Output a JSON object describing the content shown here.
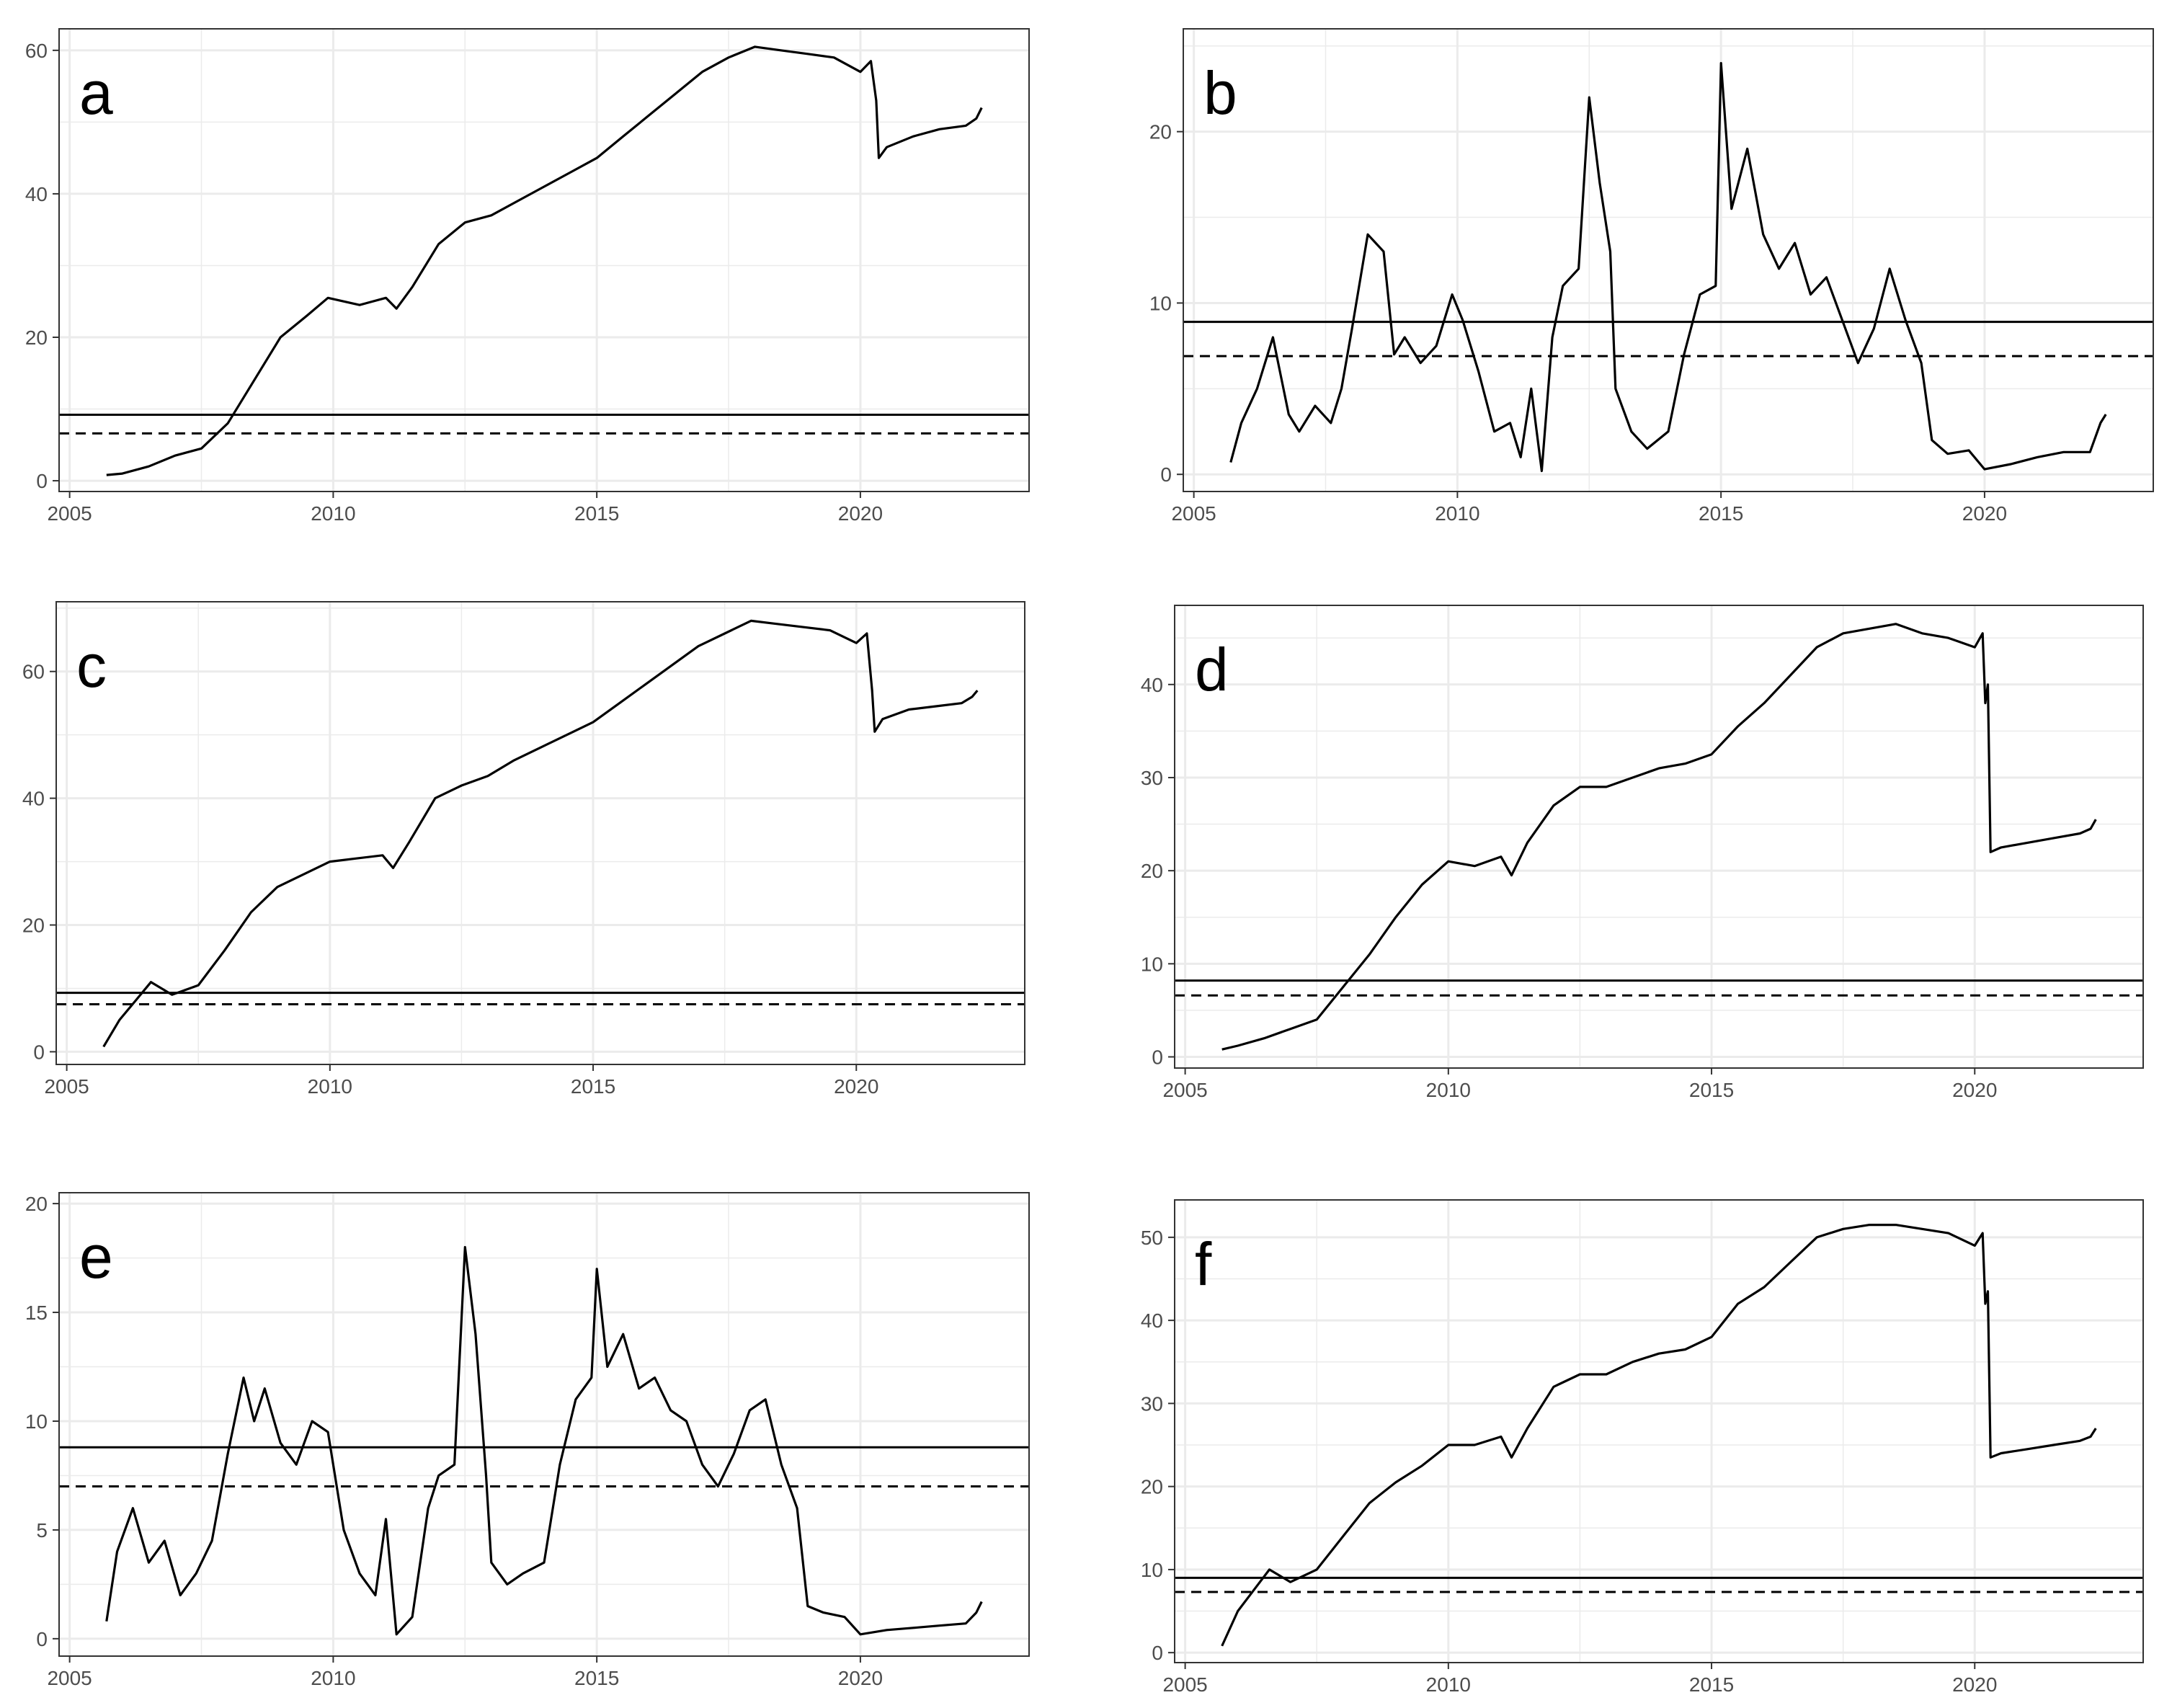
{
  "figure": {
    "line_color": "#000000",
    "grid_color": "#ebebeb",
    "frame_color": "#333333",
    "tick_label_color": "#4d4d4d"
  },
  "chart_data": [
    {
      "id": "a",
      "type": "line",
      "panel_label": "a",
      "title": "",
      "xlabel": "",
      "ylabel": "",
      "xlim": [
        2004.8,
        2023.2
      ],
      "ylim": [
        -1.5,
        63
      ],
      "x_ticks": [
        2005,
        2010,
        2015,
        2020
      ],
      "y_ticks": [
        0,
        20,
        40,
        60
      ],
      "grid": true,
      "hlines": [
        {
          "y": 9.2,
          "style": "solid"
        },
        {
          "y": 6.6,
          "style": "dashed"
        }
      ],
      "series": [
        {
          "x": [
            2005.7,
            2006.0,
            2006.5,
            2007.0,
            2007.5,
            2008.0,
            2008.5,
            2009.0,
            2009.5,
            2009.9,
            2010.5,
            2011.0,
            2011.2,
            2011.5,
            2012.0,
            2012.5,
            2013.0,
            2013.5,
            2014.0,
            2014.5,
            2015.0,
            2015.5,
            2016.0,
            2016.5,
            2017.0,
            2017.5,
            2018.0,
            2018.5,
            2019.0,
            2019.5,
            2020.0,
            2020.2,
            2020.3,
            2020.35,
            2020.5,
            2021.0,
            2021.5,
            2022.0,
            2022.2,
            2022.3
          ],
          "y": [
            0.8,
            1.0,
            2.0,
            3.5,
            4.5,
            8.0,
            14.0,
            20.0,
            23.0,
            25.5,
            24.5,
            25.5,
            24.0,
            27.0,
            33.0,
            36.0,
            37.0,
            39.0,
            41.0,
            43.0,
            45.0,
            48.0,
            51.0,
            54.0,
            57.0,
            59.0,
            60.5,
            60.0,
            59.5,
            59.0,
            57.0,
            58.5,
            53.0,
            45.0,
            46.5,
            48.0,
            49.0,
            49.5,
            50.5,
            52.0
          ]
        }
      ]
    },
    {
      "id": "b",
      "type": "line",
      "panel_label": "b",
      "title": "",
      "xlabel": "",
      "ylabel": "",
      "xlim": [
        2004.8,
        2023.2
      ],
      "ylim": [
        -1,
        26
      ],
      "x_ticks": [
        2005,
        2010,
        2015,
        2020
      ],
      "y_ticks": [
        0,
        10,
        20
      ],
      "grid": true,
      "hlines": [
        {
          "y": 8.9,
          "style": "solid"
        },
        {
          "y": 6.9,
          "style": "dashed"
        }
      ],
      "series": [
        {
          "x": [
            2005.7,
            2005.9,
            2006.2,
            2006.5,
            2006.8,
            2007.0,
            2007.3,
            2007.6,
            2007.8,
            2008.0,
            2008.3,
            2008.6,
            2008.8,
            2009.0,
            2009.3,
            2009.6,
            2009.9,
            2010.1,
            2010.4,
            2010.7,
            2011.0,
            2011.2,
            2011.4,
            2011.6,
            2011.8,
            2012.0,
            2012.3,
            2012.5,
            2012.7,
            2012.9,
            2013.0,
            2013.3,
            2013.6,
            2014.0,
            2014.3,
            2014.6,
            2014.9,
            2015.0,
            2015.2,
            2015.5,
            2015.8,
            2016.1,
            2016.4,
            2016.7,
            2017.0,
            2017.3,
            2017.6,
            2017.9,
            2018.2,
            2018.5,
            2018.8,
            2019.0,
            2019.3,
            2019.7,
            2020.0,
            2020.5,
            2021.0,
            2021.5,
            2022.0,
            2022.2,
            2022.3
          ],
          "y": [
            0.7,
            3.0,
            5.0,
            8.0,
            3.5,
            2.5,
            4.0,
            3.0,
            5.0,
            8.5,
            14.0,
            13.0,
            7.0,
            8.0,
            6.5,
            7.5,
            10.5,
            9.0,
            6.0,
            2.5,
            3.0,
            1.0,
            5.0,
            0.2,
            8.0,
            11.0,
            12.0,
            22.0,
            17.0,
            13.0,
            5.0,
            2.5,
            1.5,
            2.5,
            7.0,
            10.5,
            11.0,
            24.0,
            15.5,
            19.0,
            14.0,
            12.0,
            13.5,
            10.5,
            11.5,
            9.0,
            6.5,
            8.5,
            12.0,
            9.0,
            6.5,
            2.0,
            1.2,
            1.4,
            0.3,
            0.6,
            1.0,
            1.3,
            1.3,
            3.0,
            3.5
          ]
        }
      ]
    },
    {
      "id": "c",
      "type": "line",
      "panel_label": "c",
      "title": "",
      "xlabel": "",
      "ylabel": "",
      "xlim": [
        2004.8,
        2023.2
      ],
      "ylim": [
        -2,
        71
      ],
      "x_ticks": [
        2005,
        2010,
        2015,
        2020
      ],
      "y_ticks": [
        0,
        20,
        40,
        60
      ],
      "grid": true,
      "hlines": [
        {
          "y": 9.3,
          "style": "solid"
        },
        {
          "y": 7.5,
          "style": "dashed"
        }
      ],
      "series": [
        {
          "x": [
            2005.7,
            2006.0,
            2006.3,
            2006.6,
            2007.0,
            2007.5,
            2008.0,
            2008.5,
            2009.0,
            2009.5,
            2010.0,
            2010.5,
            2011.0,
            2011.2,
            2011.5,
            2012.0,
            2012.5,
            2013.0,
            2013.5,
            2014.0,
            2014.5,
            2015.0,
            2015.5,
            2016.0,
            2016.5,
            2017.0,
            2017.5,
            2018.0,
            2018.5,
            2019.0,
            2019.5,
            2020.0,
            2020.2,
            2020.3,
            2020.35,
            2020.5,
            2021.0,
            2021.5,
            2022.0,
            2022.2,
            2022.3
          ],
          "y": [
            0.8,
            5.0,
            8.0,
            11.0,
            9.0,
            10.5,
            16.0,
            22.0,
            26.0,
            28.0,
            30.0,
            30.5,
            31.0,
            29.0,
            33.0,
            40.0,
            42.0,
            43.5,
            46.0,
            48.0,
            50.0,
            52.0,
            55.0,
            58.0,
            61.0,
            64.0,
            66.0,
            68.0,
            67.5,
            67.0,
            66.5,
            64.5,
            66.0,
            57.0,
            50.5,
            52.5,
            54.0,
            54.5,
            55.0,
            56.0,
            57.0
          ]
        }
      ]
    },
    {
      "id": "d",
      "type": "line",
      "panel_label": "d",
      "title": "",
      "xlabel": "",
      "ylabel": "",
      "xlim": [
        2004.8,
        2023.2
      ],
      "ylim": [
        -1.2,
        48.5
      ],
      "x_ticks": [
        2005,
        2010,
        2015,
        2020
      ],
      "y_ticks": [
        0,
        10,
        20,
        30,
        40
      ],
      "grid": true,
      "hlines": [
        {
          "y": 8.2,
          "style": "solid"
        },
        {
          "y": 6.6,
          "style": "dashed"
        }
      ],
      "series": [
        {
          "x": [
            2005.7,
            2006.0,
            2006.5,
            2007.0,
            2007.5,
            2008.0,
            2008.5,
            2009.0,
            2009.5,
            2010.0,
            2010.5,
            2011.0,
            2011.2,
            2011.5,
            2012.0,
            2012.5,
            2013.0,
            2013.5,
            2014.0,
            2014.5,
            2015.0,
            2015.5,
            2016.0,
            2016.5,
            2017.0,
            2017.5,
            2018.0,
            2018.5,
            2019.0,
            2019.5,
            2020.0,
            2020.15,
            2020.2,
            2020.25,
            2020.3,
            2020.5,
            2021.0,
            2021.5,
            2022.0,
            2022.2,
            2022.3
          ],
          "y": [
            0.8,
            1.2,
            2.0,
            3.0,
            4.0,
            7.5,
            11.0,
            15.0,
            18.5,
            21.0,
            20.5,
            21.5,
            19.5,
            23.0,
            27.0,
            29.0,
            29.0,
            30.0,
            31.0,
            31.5,
            32.5,
            35.5,
            38.0,
            41.0,
            44.0,
            45.5,
            46.0,
            46.5,
            45.5,
            45.0,
            44.0,
            45.5,
            38.0,
            40.0,
            22.0,
            22.5,
            23.0,
            23.5,
            24.0,
            24.5,
            25.5
          ]
        }
      ]
    },
    {
      "id": "e",
      "type": "line",
      "panel_label": "e",
      "title": "",
      "xlabel": "",
      "ylabel": "",
      "xlim": [
        2004.8,
        2023.2
      ],
      "ylim": [
        -0.8,
        20.5
      ],
      "x_ticks": [
        2005,
        2010,
        2015,
        2020
      ],
      "y_ticks": [
        0,
        5,
        10,
        15,
        20
      ],
      "grid": true,
      "hlines": [
        {
          "y": 8.8,
          "style": "solid"
        },
        {
          "y": 7.0,
          "style": "dashed"
        }
      ],
      "series": [
        {
          "x": [
            2005.7,
            2005.9,
            2006.2,
            2006.5,
            2006.8,
            2007.1,
            2007.4,
            2007.7,
            2008.0,
            2008.3,
            2008.5,
            2008.7,
            2009.0,
            2009.3,
            2009.6,
            2009.9,
            2010.2,
            2010.5,
            2010.8,
            2011.0,
            2011.2,
            2011.5,
            2011.8,
            2012.0,
            2012.3,
            2012.5,
            2012.7,
            2012.9,
            2013.0,
            2013.3,
            2013.6,
            2014.0,
            2014.3,
            2014.6,
            2014.9,
            2015.0,
            2015.2,
            2015.5,
            2015.8,
            2016.1,
            2016.4,
            2016.7,
            2017.0,
            2017.3,
            2017.6,
            2017.9,
            2018.2,
            2018.5,
            2018.8,
            2019.0,
            2019.3,
            2019.7,
            2020.0,
            2020.5,
            2021.0,
            2021.5,
            2022.0,
            2022.2,
            2022.3
          ],
          "y": [
            0.8,
            4.0,
            6.0,
            3.5,
            4.5,
            2.0,
            3.0,
            4.5,
            8.5,
            12.0,
            10.0,
            11.5,
            9.0,
            8.0,
            10.0,
            9.5,
            5.0,
            3.0,
            2.0,
            5.5,
            0.2,
            1.0,
            6.0,
            7.5,
            8.0,
            18.0,
            14.0,
            7.5,
            3.5,
            2.5,
            3.0,
            3.5,
            8.0,
            11.0,
            12.0,
            17.0,
            12.5,
            14.0,
            11.5,
            12.0,
            10.5,
            10.0,
            8.0,
            7.0,
            8.5,
            10.5,
            11.0,
            8.0,
            6.0,
            1.5,
            1.2,
            1.0,
            0.2,
            0.4,
            0.5,
            0.6,
            0.7,
            1.2,
            1.7
          ]
        }
      ]
    },
    {
      "id": "f",
      "type": "line",
      "panel_label": "f",
      "title": "",
      "xlabel": "",
      "ylabel": "",
      "xlim": [
        2004.8,
        2023.2
      ],
      "ylim": [
        -1.2,
        54.5
      ],
      "x_ticks": [
        2005,
        2010,
        2015,
        2020
      ],
      "y_ticks": [
        0,
        10,
        20,
        30,
        40,
        50
      ],
      "grid": true,
      "hlines": [
        {
          "y": 9.0,
          "style": "solid"
        },
        {
          "y": 7.3,
          "style": "dashed"
        }
      ],
      "series": [
        {
          "x": [
            2005.7,
            2006.0,
            2006.3,
            2006.6,
            2007.0,
            2007.5,
            2008.0,
            2008.5,
            2009.0,
            2009.5,
            2010.0,
            2010.5,
            2011.0,
            2011.2,
            2011.5,
            2012.0,
            2012.5,
            2013.0,
            2013.5,
            2014.0,
            2014.5,
            2015.0,
            2015.5,
            2016.0,
            2016.5,
            2017.0,
            2017.5,
            2018.0,
            2018.5,
            2019.0,
            2019.5,
            2020.0,
            2020.15,
            2020.2,
            2020.25,
            2020.3,
            2020.5,
            2021.0,
            2021.5,
            2022.0,
            2022.2,
            2022.3
          ],
          "y": [
            0.8,
            5.0,
            7.5,
            10.0,
            8.5,
            10.0,
            14.0,
            18.0,
            20.5,
            22.5,
            25.0,
            25.0,
            26.0,
            23.5,
            27.0,
            32.0,
            33.5,
            33.5,
            35.0,
            36.0,
            36.5,
            38.0,
            42.0,
            44.0,
            47.0,
            50.0,
            51.0,
            51.5,
            51.5,
            51.0,
            50.5,
            49.0,
            50.5,
            42.0,
            43.5,
            23.5,
            24.0,
            24.5,
            25.0,
            25.5,
            26.0,
            27.0
          ]
        }
      ]
    }
  ]
}
